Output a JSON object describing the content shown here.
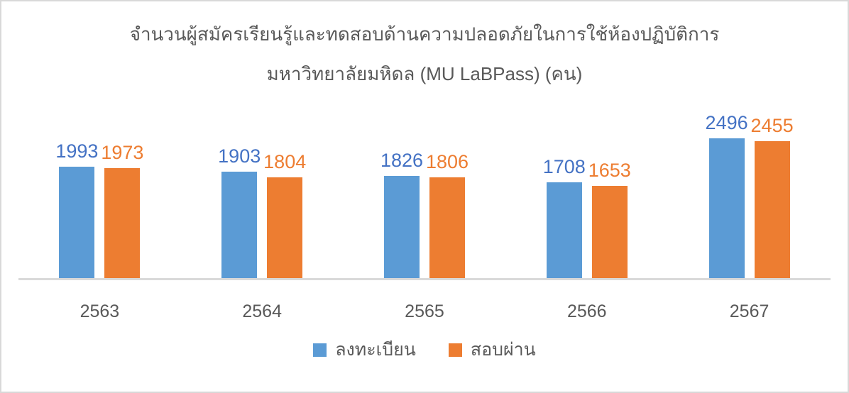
{
  "chart_data": {
    "type": "bar",
    "title_line1": "จำนวนผู้สมัครเรียนรู้และทดสอบด้านความปลอดภัยในการใช้ห้องปฏิบัติการ",
    "title_line2": "มหาวิทยาลัยมหิดล (MU LaBPass) (คน)",
    "categories": [
      "2563",
      "2564",
      "2565",
      "2566",
      "2567"
    ],
    "series": [
      {
        "name": "ลงทะเบียน",
        "values": [
          1993,
          1903,
          1826,
          1708,
          2496
        ],
        "bar_color": "#5B9BD5",
        "label_color": "#4472C4"
      },
      {
        "name": "สอบผ่าน",
        "values": [
          1973,
          1804,
          1806,
          1653,
          2455
        ],
        "bar_color": "#ED7D31",
        "label_color": "#ED7D31"
      }
    ],
    "grid": false,
    "y_axis_visible": false,
    "legend_position": "bottom",
    "axis_line_color": "#d9d9d9",
    "title_color": "#595959",
    "axis_text_color": "#595959",
    "background_color": "#ffffff",
    "border_color": "#d9d9d9"
  }
}
